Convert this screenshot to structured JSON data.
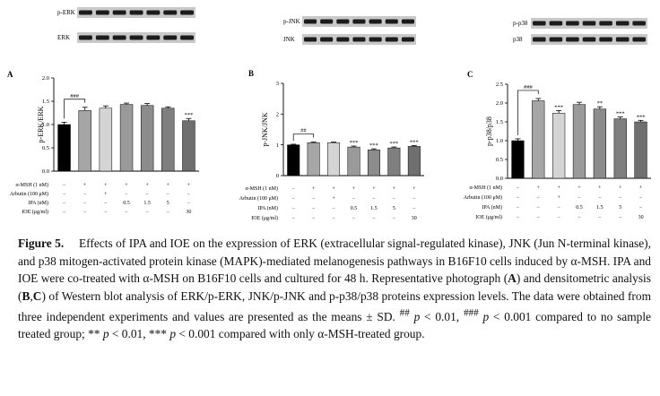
{
  "caption": {
    "label": "Figure 5.",
    "segments": [
      {
        "t": "Effects of IPA and IOE on the expression of ERK (extracellular signal-regulated kinase), JNK (Jun N-terminal kinase), and p38 mitogen-activated protein kinase (MAPK)-mediated melanogenesis pathways in B16F10 cells induced by α-MSH. IPA and IOE were co-treated with α-MSH on B16F10 cells and cultured for 48 h. Representative photograph ("
      },
      {
        "t": "A",
        "b": true
      },
      {
        "t": ") and densitometric analysis ("
      },
      {
        "t": "B",
        "b": true
      },
      {
        "t": ","
      },
      {
        "t": "C",
        "b": true
      },
      {
        "t": ") of Western blot analysis of ERK/p-ERK, JNK/p-JNK and p-p38/p38 proteins expression levels. The data were obtained from three independent experiments and values are presented as the means ± SD. "
      },
      {
        "t": "##",
        "sup": true
      },
      {
        "t": " "
      },
      {
        "t": "p",
        "i": true
      },
      {
        "t": " < 0.01, "
      },
      {
        "t": "###",
        "sup": true
      },
      {
        "t": " "
      },
      {
        "t": "p",
        "i": true
      },
      {
        "t": " < 0.001 compared to no sample treated group; ** "
      },
      {
        "t": "p",
        "i": true
      },
      {
        "t": " < 0.01, *** "
      },
      {
        "t": "p",
        "i": true
      },
      {
        "t": " < 0.001 compared with only α-MSH-treated group."
      }
    ]
  },
  "treatments": {
    "rows": [
      {
        "label": "α-MSH (1 nM)",
        "values": [
          "−",
          "+",
          "+",
          "+",
          "+",
          "+",
          "+"
        ]
      },
      {
        "label": "Arbutin (100 μM)",
        "values": [
          "−",
          "−",
          "+",
          "−",
          "−",
          "−",
          "−"
        ]
      },
      {
        "label": "IPA (nM)",
        "values": [
          "−",
          "−",
          "−",
          "0.5",
          "1.5",
          "5",
          "−"
        ]
      },
      {
        "label": "IOE (μg/ml)",
        "values": [
          "−",
          "−",
          "−",
          "−",
          "−",
          "−",
          "30"
        ]
      }
    ],
    "bar_colors": [
      "#000000",
      "#a6a6a6",
      "#d4d4d4",
      "#9a9a9a",
      "#8c8c8c",
      "#7f7f7f",
      "#6f6f6f"
    ]
  },
  "blots": [
    {
      "labels": [
        "p-ERK",
        "ERK"
      ],
      "lanes": 7
    },
    {
      "labels": [
        "p-JNK",
        "JNK"
      ],
      "lanes": 7
    },
    {
      "labels": [
        "p-p38",
        "p38"
      ],
      "lanes": 7
    }
  ],
  "chart_data": [
    {
      "type": "bar",
      "panel": "A",
      "ylabel": "p-ERK/ERK",
      "ylim": [
        0,
        2
      ],
      "yticks": [
        "0.0",
        "0.5",
        "1.0",
        "1.5",
        "2.0"
      ],
      "values": [
        1.0,
        1.3,
        1.35,
        1.43,
        1.41,
        1.35,
        1.08
      ],
      "errors": [
        0.05,
        0.07,
        0.05,
        0.03,
        0.04,
        0.03,
        0.05
      ],
      "annotations": [
        "",
        "",
        "",
        "",
        "",
        "",
        "***"
      ],
      "bracket": "###"
    },
    {
      "type": "bar",
      "panel": "B",
      "ylabel": "p-JNK/JNK",
      "ylim": [
        0,
        3
      ],
      "yticks": [
        "0",
        "1",
        "2",
        "3"
      ],
      "values": [
        1.0,
        1.07,
        1.07,
        0.93,
        0.84,
        0.9,
        0.95
      ],
      "errors": [
        0.02,
        0.02,
        0.02,
        0.03,
        0.03,
        0.03,
        0.03
      ],
      "annotations": [
        "",
        "",
        "",
        "***",
        "***",
        "***",
        "***"
      ],
      "bracket": "##"
    },
    {
      "type": "bar",
      "panel": "C",
      "ylabel": "p-p38/p38",
      "ylim": [
        0,
        2.5
      ],
      "yticks": [
        "0.0",
        "0.5",
        "1.0",
        "1.5",
        "2.0",
        "2.5"
      ],
      "values": [
        1.0,
        2.06,
        1.73,
        1.96,
        1.84,
        1.58,
        1.5
      ],
      "errors": [
        0.05,
        0.06,
        0.07,
        0.06,
        0.06,
        0.05,
        0.04
      ],
      "annotations": [
        "",
        "",
        "***",
        "",
        "**",
        "***",
        "***"
      ],
      "bracket": "###"
    }
  ]
}
